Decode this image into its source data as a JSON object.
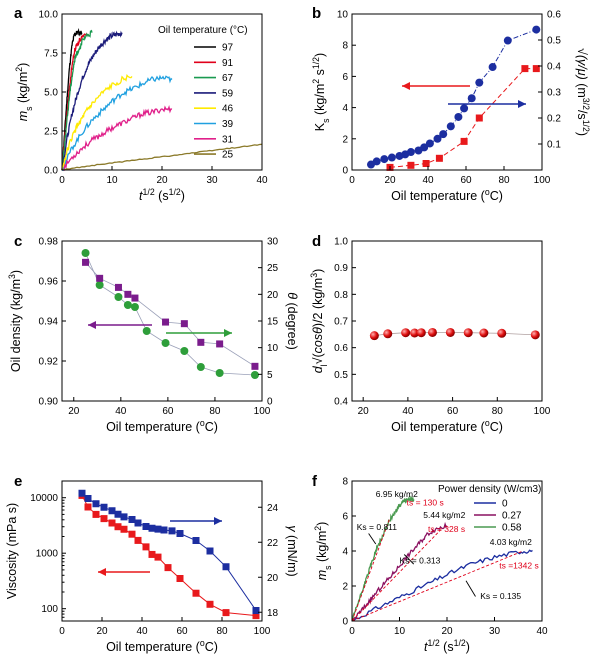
{
  "chart_data": [
    {
      "panel": "a",
      "type": "line",
      "xlabel": "t1/2 (s1/2)",
      "ylabel": "ms (kg/m2)",
      "xlim": [
        0,
        40
      ],
      "ylim": [
        0,
        10
      ],
      "xticks": [
        0,
        10,
        20,
        30,
        40
      ],
      "yticks": [
        0.0,
        2.5,
        5.0,
        7.5,
        10.0
      ],
      "legend_title": "Oil temperature (°C)",
      "legend_position": "right",
      "series": [
        {
          "name": "97",
          "color": "#000000",
          "x": [
            0,
            0.5,
            1,
            1.5,
            2,
            2.5,
            3,
            4
          ],
          "y": [
            0,
            2.3,
            4.6,
            6.6,
            8.0,
            8.7,
            8.8,
            8.8
          ]
        },
        {
          "name": "91",
          "color": "#e0001b",
          "x": [
            0,
            0.5,
            1,
            1.5,
            2,
            2.5,
            3,
            4,
            5
          ],
          "y": [
            0,
            1.8,
            3.6,
            5.3,
            6.7,
            7.6,
            8.1,
            8.5,
            8.6
          ]
        },
        {
          "name": "67",
          "color": "#1a9a50",
          "x": [
            0,
            0.5,
            1,
            1.5,
            2,
            2.5,
            3,
            4,
            5,
            6
          ],
          "y": [
            0,
            1.6,
            3.2,
            4.8,
            6.0,
            7.0,
            7.5,
            8.2,
            8.6,
            8.8
          ]
        },
        {
          "name": "59",
          "color": "#1c1c7a",
          "x": [
            0,
            1,
            2,
            3,
            4,
            5,
            6,
            7,
            8,
            9,
            10,
            11,
            12
          ],
          "y": [
            0,
            2.0,
            3.6,
            4.8,
            5.8,
            6.6,
            7.2,
            7.7,
            8.1,
            8.4,
            8.6,
            8.7,
            8.8
          ]
        },
        {
          "name": "46",
          "color": "#ffea00",
          "x": [
            0,
            1,
            2,
            3,
            4,
            5,
            6,
            8,
            10,
            12,
            14
          ],
          "y": [
            0,
            1.2,
            2.1,
            2.8,
            3.3,
            3.8,
            4.2,
            4.9,
            5.4,
            5.8,
            6.0
          ]
        },
        {
          "name": "39",
          "color": "#20a0e0",
          "x": [
            0,
            2,
            4,
            6,
            8,
            10,
            12,
            14,
            16,
            18,
            20,
            22
          ],
          "y": [
            0,
            1.4,
            2.4,
            3.2,
            3.8,
            4.4,
            4.9,
            5.2,
            5.5,
            5.8,
            5.9,
            5.8
          ]
        },
        {
          "name": "31",
          "color": "#e0208a",
          "x": [
            0,
            2,
            4,
            6,
            8,
            10,
            12,
            14,
            16,
            18,
            20,
            22
          ],
          "y": [
            0,
            0.8,
            1.4,
            1.9,
            2.3,
            2.7,
            3.0,
            3.3,
            3.6,
            3.7,
            3.9,
            3.9
          ]
        },
        {
          "name": "25",
          "color": "#8b7a2a",
          "x": [
            0,
            5,
            10,
            15,
            20,
            25,
            30,
            35,
            40
          ],
          "y": [
            0,
            0.25,
            0.45,
            0.65,
            0.85,
            1.05,
            1.25,
            1.45,
            1.65
          ]
        }
      ]
    },
    {
      "panel": "b",
      "type": "scatter",
      "xlabel": "Oil temperature (°C)",
      "ylabel_left": "Ks (kg/m2 s1/2)",
      "ylabel_right": "√(γ/μ) (m3/2/s1/2)",
      "xlim": [
        0,
        100
      ],
      "ylim_left": [
        0,
        10
      ],
      "ylim_right": [
        0,
        0.6
      ],
      "xticks": [
        0,
        20,
        40,
        60,
        80,
        100
      ],
      "yticks_left": [
        0,
        2,
        4,
        6,
        8,
        10
      ],
      "yticks_right": [
        0.1,
        0.2,
        0.3,
        0.4,
        0.5,
        0.6
      ],
      "series": [
        {
          "name": "Ks",
          "axis": "left",
          "marker": "circle",
          "color": "#1c2ea0",
          "x": [
            10,
            13,
            17,
            21,
            25,
            28,
            31,
            35,
            38,
            41,
            45,
            48,
            52,
            56,
            59,
            63,
            67,
            74,
            82,
            97
          ],
          "y": [
            0.35,
            0.55,
            0.7,
            0.8,
            0.9,
            1.0,
            1.15,
            1.25,
            1.45,
            1.7,
            2.0,
            2.3,
            2.8,
            3.4,
            3.95,
            4.6,
            5.6,
            6.6,
            8.3,
            9.0
          ]
        },
        {
          "name": "√(γ/μ)",
          "axis": "right",
          "marker": "square",
          "color": "#e8191c",
          "x": [
            20,
            31,
            39,
            46,
            59,
            67,
            91,
            97
          ],
          "y": [
            0.01,
            0.018,
            0.025,
            0.045,
            0.11,
            0.2,
            0.39,
            0.39
          ]
        }
      ]
    },
    {
      "panel": "c",
      "type": "scatter",
      "xlabel": "Oil temperature (°C)",
      "ylabel_left": "Oil density (kg/m3)",
      "ylabel_right": "θ (degree)",
      "xlim": [
        15,
        100
      ],
      "ylim_left": [
        0.9,
        0.98
      ],
      "ylim_right": [
        0,
        30
      ],
      "xticks": [
        20,
        40,
        60,
        80,
        100
      ],
      "yticks_left": [
        0.9,
        0.92,
        0.94,
        0.96,
        0.98
      ],
      "yticks_right": [
        0,
        5,
        10,
        15,
        20,
        25,
        30
      ],
      "series": [
        {
          "name": "Oil density",
          "axis": "left",
          "marker": "circle",
          "color": "#2e9e3a",
          "x": [
            25,
            31,
            39,
            43,
            46,
            51,
            59,
            67,
            74,
            82,
            97
          ],
          "y": [
            0.974,
            0.958,
            0.952,
            0.948,
            0.947,
            0.935,
            0.929,
            0.925,
            0.917,
            0.914,
            0.913
          ]
        },
        {
          "name": "θ",
          "axis": "right",
          "marker": "square",
          "color": "#7a1c8c",
          "x": [
            25,
            31,
            39,
            43,
            46,
            59,
            67,
            74,
            82,
            97
          ],
          "y": [
            26,
            23,
            21.3,
            20,
            19.3,
            14.8,
            14.5,
            11,
            10.7,
            6.5
          ]
        }
      ]
    },
    {
      "panel": "d",
      "type": "scatter",
      "xlabel": "Oil temperature (°C)",
      "ylabel": "dl √(cos θ)/2 (kg/m3)",
      "xlim": [
        15,
        100
      ],
      "ylim": [
        0.4,
        1.0
      ],
      "xticks": [
        20,
        40,
        60,
        80,
        100
      ],
      "yticks": [
        0.4,
        0.5,
        0.6,
        0.7,
        0.8,
        0.9,
        1.0
      ],
      "series": [
        {
          "name": "dl √(cos θ)/2",
          "marker": "sphere",
          "color": "#e01010",
          "x": [
            25,
            31,
            39,
            43,
            46,
            51,
            59,
            67,
            74,
            82,
            97
          ],
          "y": [
            0.645,
            0.652,
            0.656,
            0.655,
            0.656,
            0.657,
            0.657,
            0.656,
            0.655,
            0.654,
            0.648
          ]
        }
      ]
    },
    {
      "panel": "e",
      "type": "scatter",
      "xlabel": "Oil temperature (°C)",
      "ylabel_left": "Viscosity (mPa s)",
      "ylabel_right": "γ (mN/m)",
      "xlim": [
        0,
        100
      ],
      "ylim_left": [
        60,
        20000
      ],
      "yscale_left": "log",
      "ylim_right": [
        17.5,
        25.5
      ],
      "xticks": [
        0,
        20,
        40,
        60,
        80,
        100
      ],
      "yticks_left": [
        100,
        1000,
        10000
      ],
      "yticks_right": [
        18,
        20,
        22,
        24
      ],
      "series": [
        {
          "name": "Viscosity",
          "axis": "left",
          "marker": "square",
          "color": "#e8191c",
          "x": [
            10,
            13,
            17,
            21,
            25,
            28,
            31,
            35,
            38,
            42,
            45,
            48,
            53,
            59,
            67,
            74,
            82,
            97
          ],
          "y": [
            11000,
            6800,
            5000,
            4200,
            3500,
            3000,
            2700,
            2200,
            1700,
            1300,
            950,
            850,
            550,
            350,
            190,
            120,
            85,
            75
          ]
        },
        {
          "name": "γ",
          "axis": "right",
          "marker": "square",
          "color": "#1c2ea0",
          "x": [
            10,
            13,
            17,
            21,
            25,
            28,
            31,
            35,
            38,
            42,
            45,
            48,
            51,
            55,
            59,
            67,
            74,
            82,
            97
          ],
          "y": [
            24.8,
            24.5,
            24.2,
            24.0,
            23.8,
            23.6,
            23.45,
            23.3,
            23.1,
            22.9,
            22.8,
            22.75,
            22.7,
            22.65,
            22.5,
            22.1,
            21.5,
            20.6,
            18.1
          ]
        }
      ]
    },
    {
      "panel": "f",
      "type": "line",
      "xlabel": "t1/2 (s1/2)",
      "ylabel": "ms (kg/m2)",
      "xlim": [
        0,
        40
      ],
      "ylim": [
        0,
        8
      ],
      "xticks": [
        0,
        10,
        20,
        30,
        40
      ],
      "yticks": [
        0,
        2,
        4,
        6,
        8
      ],
      "legend_title": "Power density (W/cm3)",
      "legend_position": "top-right",
      "series": [
        {
          "name": "0",
          "color": "#1c2ea0",
          "x": [
            0,
            5,
            10,
            15,
            20,
            25,
            30,
            35,
            38
          ],
          "y": [
            0,
            0.7,
            1.35,
            2.0,
            2.65,
            3.25,
            3.65,
            3.95,
            4.03
          ]
        },
        {
          "name": "0.27",
          "color": "#8a1060",
          "x": [
            0,
            2,
            4,
            6,
            8,
            10,
            12,
            14,
            16,
            18,
            20
          ],
          "y": [
            0,
            0.6,
            1.25,
            1.9,
            2.5,
            3.15,
            3.8,
            4.4,
            5.0,
            5.3,
            5.44
          ]
        },
        {
          "name": "0.58",
          "color": "#4a9a50",
          "x": [
            0,
            1,
            2,
            3,
            4,
            5,
            6,
            7,
            8,
            9,
            10,
            11,
            12,
            13
          ],
          "y": [
            0,
            0.8,
            1.6,
            2.4,
            3.2,
            4.0,
            4.6,
            5.2,
            5.8,
            6.2,
            6.6,
            6.85,
            6.95,
            6.95
          ]
        }
      ],
      "annotations": [
        {
          "text": "6.95 kg/m2",
          "x": 5,
          "y": 7.1
        },
        {
          "text": "ts = 130 s",
          "x": 11.5,
          "y": 6.6,
          "color": "#e0001b"
        },
        {
          "text": "5.44 kg/m2",
          "x": 15,
          "y": 5.9
        },
        {
          "text": "ts = 328 s",
          "x": 16,
          "y": 5.1,
          "color": "#e0001b"
        },
        {
          "text": "Ks = 0.811",
          "x": 1,
          "y": 5.2
        },
        {
          "text": "Ks = 0.313",
          "x": 10,
          "y": 3.3
        },
        {
          "text": "4.03 kg/m2",
          "x": 29,
          "y": 4.35
        },
        {
          "text": "ts =1342 s",
          "x": 31,
          "y": 3.0,
          "color": "#e0001b"
        },
        {
          "text": "Ks = 0.135",
          "x": 27,
          "y": 1.25
        }
      ]
    }
  ]
}
